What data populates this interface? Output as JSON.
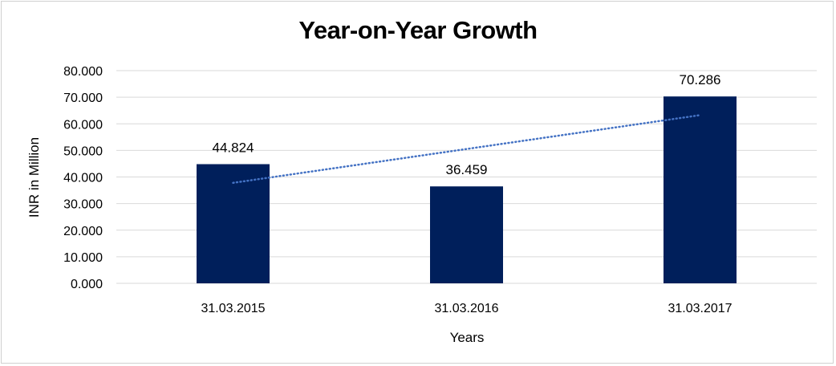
{
  "colors": {
    "bar": "#001F5B",
    "grid": "#d9d9d9",
    "trend": "#4472C4"
  },
  "chart_data": {
    "type": "bar",
    "title": "Year-on-Year Growth",
    "xlabel": "Years",
    "ylabel": "INR in Million",
    "categories": [
      "31.03.2015",
      "31.03.2016",
      "31.03.2017"
    ],
    "values": [
      44.824,
      36.459,
      70.286
    ],
    "data_labels": [
      "44.824",
      "36.459",
      "70.286"
    ],
    "ylim": [
      0,
      80
    ],
    "yticks": [
      "0.000",
      "10.000",
      "20.000",
      "30.000",
      "40.000",
      "50.000",
      "60.000",
      "70.000",
      "80.000"
    ],
    "grid": true,
    "legend": "none",
    "trendline": "linear (dotted)"
  }
}
